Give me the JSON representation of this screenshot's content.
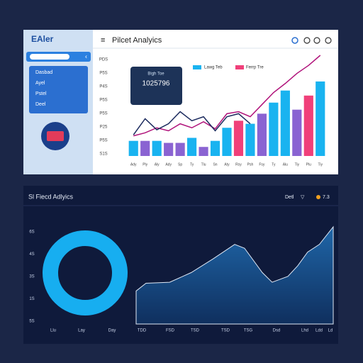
{
  "sidebar": {
    "logo": "EAler",
    "menu": [
      "Dasbad",
      "Ayel",
      "Pstel",
      "Deel"
    ]
  },
  "top_panel": {
    "title": "Pilcet Analyics",
    "tooltip": {
      "label": "Bigh Toe",
      "value": "1025796"
    },
    "legend": [
      "Lawg Teb",
      "Ferrp Tre"
    ],
    "y_labels": [
      "PDS",
      "P5S",
      "P4S",
      "P5S",
      "P5S",
      "P25",
      "P5S",
      "S1S"
    ],
    "chart": {
      "ylim": [
        0,
        100
      ],
      "categories": [
        "Ady",
        "Ply",
        "Aly",
        "Ady",
        "Sp",
        "Ty",
        "Tlu",
        "Sn",
        "Aty",
        "Rsy",
        "Psh",
        "Fsy",
        "Ty",
        "Alu",
        "Tiy",
        "Plu",
        "Tiy"
      ],
      "values": [
        15,
        15,
        15,
        13,
        13,
        18,
        9,
        15,
        28,
        35,
        32,
        42,
        53,
        65,
        46,
        60,
        74
      ],
      "colors": [
        "#19b3f0",
        "#8a63d2",
        "#19b3f0",
        "#8a63d2",
        "#8a63d2",
        "#19b3f0",
        "#8a63d2",
        "#19b3f0",
        "#19b3f0",
        "#f0407a",
        "#19b3f0",
        "#8a63d2",
        "#19b3f0",
        "#19b3f0",
        "#8a63d2",
        "#f0407a",
        "#19b3f0"
      ],
      "lines": [
        {
          "color": "#b0127a",
          "values": [
            20,
            23,
            28,
            25,
            32,
            28,
            34,
            27,
            42,
            44,
            39,
            51,
            63,
            72,
            82,
            90,
            100
          ]
        },
        {
          "color": "#1b2a5e",
          "values": [
            21,
            37,
            26,
            32,
            44,
            35,
            39,
            25,
            39,
            42,
            32,
            null,
            null,
            null,
            null,
            null,
            null
          ]
        }
      ]
    }
  },
  "bottom_panel": {
    "title": "Sl Fiecd Adlyics",
    "controls": [
      "Detl",
      "7.3"
    ],
    "y_labels": [
      "6S",
      "4S",
      "3S",
      "1S",
      "5S"
    ],
    "x_labels": [
      "Llu",
      "Lay",
      "Day",
      "TDD",
      "FSD",
      "TSD",
      "TSD",
      "TSG",
      "Dsd",
      "Lhd",
      "Ldd",
      "Ld"
    ],
    "area": {
      "xlim": [
        0,
        100
      ],
      "ylim": [
        0,
        100
      ],
      "x": [
        0,
        5,
        17,
        28,
        39,
        50,
        55,
        64,
        69,
        77,
        82,
        87,
        93,
        100
      ],
      "values": [
        34,
        42,
        43,
        53,
        67,
        82,
        78,
        53,
        43,
        49,
        60,
        74,
        82,
        100
      ]
    }
  }
}
